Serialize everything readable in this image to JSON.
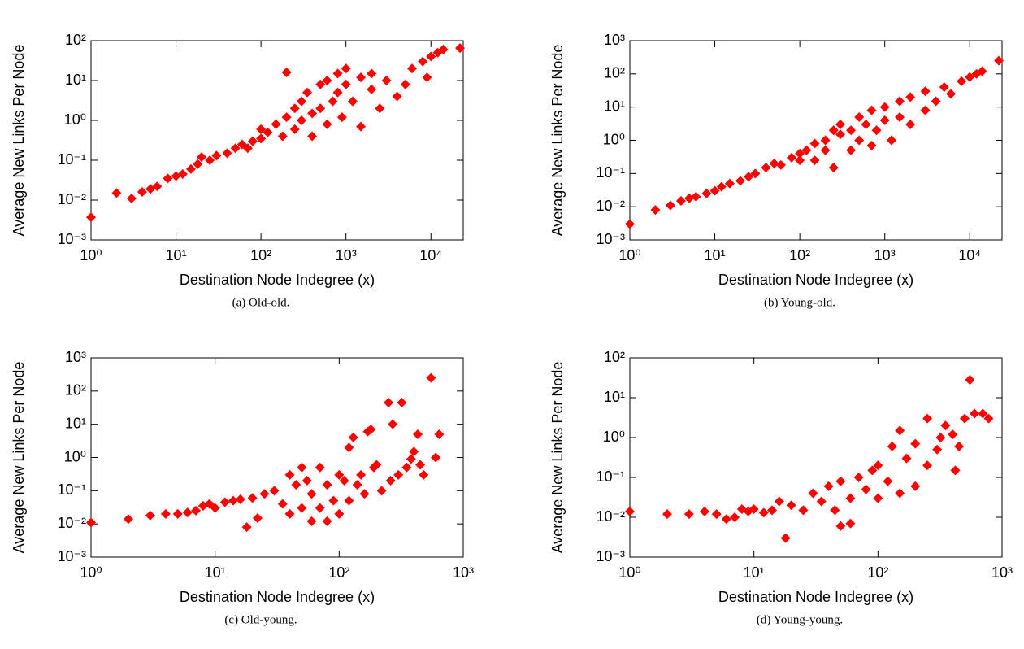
{
  "chart_data": [
    {
      "type": "scatter",
      "caption": "(a) Old-old.",
      "xlabel": "Destination Node Indegree (x)",
      "ylabel": "Average New Links Per Node",
      "xscale": "log",
      "yscale": "log",
      "color": "#ff0000",
      "marker": "diamond",
      "xlim": [
        1,
        24000
      ],
      "ylim": [
        0.001,
        100
      ],
      "xticks": [
        {
          "value": 1,
          "label": "10⁰"
        },
        {
          "value": 10,
          "label": "10¹"
        },
        {
          "value": 100,
          "label": "10²"
        },
        {
          "value": 1000,
          "label": "10³"
        },
        {
          "value": 10000,
          "label": "10⁴"
        }
      ],
      "yticks": [
        {
          "value": 0.001,
          "label": "10⁻³"
        },
        {
          "value": 0.01,
          "label": "10⁻²"
        },
        {
          "value": 0.1,
          "label": "10⁻¹"
        },
        {
          "value": 1,
          "label": "10⁰"
        },
        {
          "value": 10,
          "label": "10¹"
        },
        {
          "value": 100,
          "label": "10²"
        }
      ],
      "x": [
        1,
        2,
        3,
        4,
        5,
        6,
        8,
        10,
        12,
        15,
        18,
        20,
        25,
        30,
        40,
        50,
        60,
        70,
        80,
        100,
        100,
        120,
        150,
        180,
        200,
        200,
        250,
        250,
        300,
        300,
        350,
        400,
        400,
        500,
        500,
        600,
        600,
        700,
        800,
        800,
        900,
        1000,
        1000,
        1200,
        1500,
        1500,
        2000,
        2000,
        2500,
        3000,
        4000,
        5000,
        6000,
        8000,
        9000,
        10000,
        12000,
        14000,
        22000
      ],
      "y": [
        0.0037,
        0.015,
        0.011,
        0.016,
        0.019,
        0.022,
        0.035,
        0.04,
        0.045,
        0.06,
        0.08,
        0.12,
        0.1,
        0.13,
        0.15,
        0.2,
        0.25,
        0.2,
        0.3,
        0.35,
        0.6,
        0.5,
        0.8,
        0.4,
        16,
        1.2,
        2,
        0.6,
        3,
        1,
        5,
        1.5,
        0.4,
        8,
        2,
        10,
        0.8,
        3,
        15,
        5,
        1.2,
        20,
        8,
        3,
        12,
        0.7,
        6,
        15,
        2,
        10,
        4,
        8,
        20,
        30,
        12,
        40,
        50,
        60,
        65
      ]
    },
    {
      "type": "scatter",
      "caption": "(b) Young-old.",
      "xlabel": "Destination Node Indegree (x)",
      "ylabel": "Average New Links Per Node",
      "xscale": "log",
      "yscale": "log",
      "color": "#ff0000",
      "marker": "diamond",
      "xlim": [
        1,
        24000
      ],
      "ylim": [
        0.001,
        1000
      ],
      "xticks": [
        {
          "value": 1,
          "label": "10⁰"
        },
        {
          "value": 10,
          "label": "10¹"
        },
        {
          "value": 100,
          "label": "10²"
        },
        {
          "value": 1000,
          "label": "10³"
        },
        {
          "value": 10000,
          "label": "10⁴"
        }
      ],
      "yticks": [
        {
          "value": 0.001,
          "label": "10⁻³"
        },
        {
          "value": 0.01,
          "label": "10⁻²"
        },
        {
          "value": 0.1,
          "label": "10⁻¹"
        },
        {
          "value": 1,
          "label": "10⁰"
        },
        {
          "value": 10,
          "label": "10¹"
        },
        {
          "value": 100,
          "label": "10²"
        },
        {
          "value": 1000,
          "label": "10³"
        }
      ],
      "x": [
        1,
        2,
        3,
        4,
        5,
        6,
        8,
        10,
        12,
        15,
        20,
        25,
        30,
        40,
        50,
        60,
        80,
        100,
        100,
        120,
        150,
        150,
        200,
        200,
        250,
        250,
        300,
        300,
        400,
        400,
        500,
        500,
        600,
        700,
        700,
        800,
        1000,
        1000,
        1200,
        1500,
        1500,
        2000,
        2000,
        3000,
        3000,
        4000,
        5000,
        6000,
        8000,
        10000,
        12000,
        14000,
        22000
      ],
      "y": [
        0.003,
        0.008,
        0.011,
        0.015,
        0.018,
        0.02,
        0.025,
        0.03,
        0.04,
        0.05,
        0.06,
        0.08,
        0.1,
        0.15,
        0.2,
        0.18,
        0.3,
        0.4,
        0.25,
        0.5,
        0.8,
        0.25,
        1,
        0.5,
        2,
        0.15,
        1.5,
        3,
        2,
        0.5,
        5,
        1,
        3,
        8,
        0.7,
        2,
        10,
        4,
        1,
        15,
        5,
        3,
        20,
        30,
        8,
        15,
        40,
        25,
        60,
        80,
        100,
        120,
        250
      ]
    },
    {
      "type": "scatter",
      "caption": "(c) Old-young.",
      "xlabel": "Destination Node Indegree (x)",
      "ylabel": "Average New Links Per Node",
      "xscale": "log",
      "yscale": "log",
      "color": "#ff0000",
      "marker": "diamond",
      "xlim": [
        1,
        1000
      ],
      "ylim": [
        0.001,
        1000
      ],
      "xticks": [
        {
          "value": 1,
          "label": "10⁰"
        },
        {
          "value": 10,
          "label": "10¹"
        },
        {
          "value": 100,
          "label": "10²"
        },
        {
          "value": 1000,
          "label": "10³"
        }
      ],
      "yticks": [
        {
          "value": 0.001,
          "label": "10⁻³"
        },
        {
          "value": 0.01,
          "label": "10⁻²"
        },
        {
          "value": 0.1,
          "label": "10⁻¹"
        },
        {
          "value": 1,
          "label": "10⁰"
        },
        {
          "value": 10,
          "label": "10¹"
        },
        {
          "value": 100,
          "label": "10²"
        },
        {
          "value": 1000,
          "label": "10³"
        }
      ],
      "x": [
        1,
        2,
        3,
        4,
        5,
        6,
        7,
        8,
        9,
        10,
        12,
        14,
        16,
        18,
        20,
        22,
        25,
        30,
        35,
        40,
        40,
        45,
        50,
        50,
        55,
        60,
        60,
        70,
        70,
        80,
        80,
        90,
        100,
        100,
        110,
        120,
        120,
        130,
        140,
        150,
        160,
        170,
        180,
        190,
        200,
        220,
        250,
        260,
        270,
        300,
        320,
        350,
        380,
        400,
        430,
        450,
        480,
        550,
        600,
        640
      ],
      "y": [
        0.011,
        0.014,
        0.018,
        0.02,
        0.02,
        0.022,
        0.025,
        0.035,
        0.04,
        0.03,
        0.045,
        0.05,
        0.055,
        0.008,
        0.06,
        0.015,
        0.08,
        0.1,
        0.04,
        0.3,
        0.02,
        0.15,
        0.5,
        0.03,
        0.2,
        0.012,
        0.08,
        0.5,
        0.03,
        0.012,
        0.15,
        0.05,
        0.3,
        0.02,
        0.2,
        2,
        0.05,
        4,
        0.15,
        0.3,
        0.08,
        6,
        7,
        0.5,
        0.6,
        0.1,
        45,
        0.2,
        10,
        0.3,
        45,
        0.5,
        0.9,
        1.5,
        5,
        0.6,
        0.3,
        250,
        1,
        5
      ]
    },
    {
      "type": "scatter",
      "caption": "(d) Young-young.",
      "xlabel": "Destination Node Indegree (x)",
      "ylabel": "Average New Links Per Node",
      "xscale": "log",
      "yscale": "log",
      "color": "#ff0000",
      "marker": "diamond",
      "xlim": [
        1,
        1000
      ],
      "ylim": [
        0.001,
        100
      ],
      "xticks": [
        {
          "value": 1,
          "label": "10⁰"
        },
        {
          "value": 10,
          "label": "10¹"
        },
        {
          "value": 100,
          "label": "10²"
        },
        {
          "value": 1000,
          "label": "10³"
        }
      ],
      "yticks": [
        {
          "value": 0.001,
          "label": "10⁻³"
        },
        {
          "value": 0.01,
          "label": "10⁻²"
        },
        {
          "value": 0.1,
          "label": "10⁻¹"
        },
        {
          "value": 1,
          "label": "10⁰"
        },
        {
          "value": 10,
          "label": "10¹"
        },
        {
          "value": 100,
          "label": "10²"
        }
      ],
      "x": [
        1,
        2,
        3,
        4,
        5,
        6,
        7,
        8,
        9,
        10,
        12,
        14,
        16,
        18,
        20,
        25,
        30,
        35,
        40,
        45,
        50,
        50,
        60,
        60,
        70,
        80,
        90,
        100,
        100,
        120,
        130,
        150,
        150,
        170,
        200,
        200,
        250,
        250,
        300,
        320,
        350,
        400,
        420,
        450,
        500,
        550,
        600,
        700,
        780
      ],
      "y": [
        0.014,
        0.012,
        0.012,
        0.014,
        0.012,
        0.009,
        0.01,
        0.016,
        0.014,
        0.016,
        0.013,
        0.015,
        0.025,
        0.003,
        0.02,
        0.015,
        0.04,
        0.025,
        0.06,
        0.015,
        0.08,
        0.006,
        0.03,
        0.007,
        0.1,
        0.05,
        0.15,
        0.03,
        0.2,
        0.08,
        0.6,
        1.5,
        0.04,
        0.3,
        0.7,
        0.06,
        3,
        0.2,
        0.5,
        1,
        2,
        1.2,
        0.15,
        0.6,
        3,
        28,
        4,
        4,
        3
      ]
    }
  ]
}
